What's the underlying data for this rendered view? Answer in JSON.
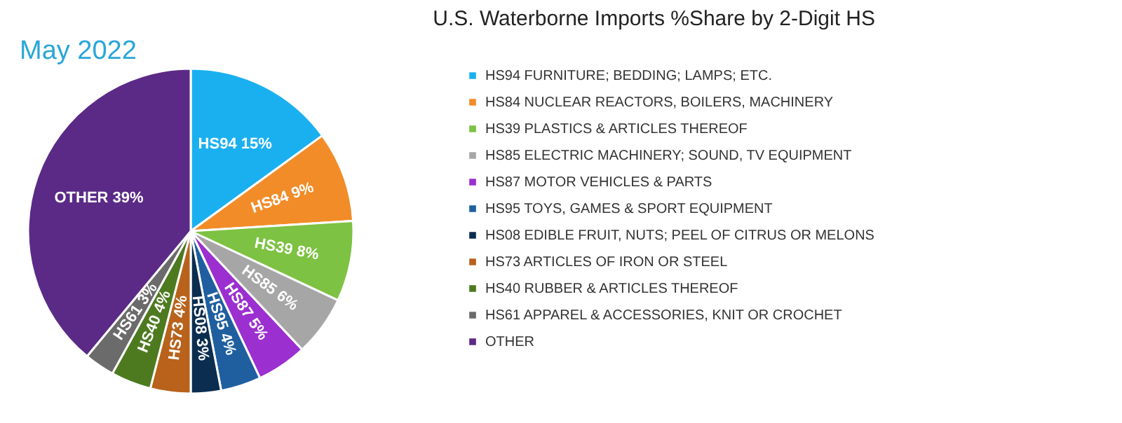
{
  "chart_data": {
    "type": "pie",
    "title": "U.S. Waterborne Imports %Share by 2-Digit HS",
    "subtitle": "May 2022",
    "categories": [
      "HS94 FURNITURE; BEDDING; LAMPS; ETC.",
      "HS84 NUCLEAR REACTORS, BOILERS, MACHINERY",
      "HS39 PLASTICS & ARTICLES THEREOF",
      "HS85 ELECTRIC MACHINERY; SOUND, TV EQUIPMENT",
      "HS87 MOTOR VEHICLES & PARTS",
      "HS95 TOYS, GAMES & SPORT EQUIPMENT",
      "HS08 EDIBLE FRUIT, NUTS; PEEL OF CITRUS OR MELONS",
      "HS73 ARTICLES OF IRON OR STEEL",
      "HS40 RUBBER & ARTICLES THEREOF",
      "HS61 APPAREL & ACCESSORIES, KNIT OR CROCHET",
      "OTHER"
    ],
    "values": [
      15,
      9,
      8,
      6,
      5,
      4,
      3,
      4,
      4,
      3,
      39
    ],
    "value_labels": [
      "HS94 15%",
      "HS84 9%",
      "HS39 8%",
      "HS85 6%",
      "HS87 5%",
      "HS95 4%",
      "HS08 3%",
      "HS73 4%",
      "HS40 4%",
      "HS61 3%",
      "OTHER 39%"
    ],
    "colors": [
      "#1ab0f0",
      "#f28c28",
      "#7dc242",
      "#a6a6a6",
      "#9b2fd0",
      "#1f5fa0",
      "#0b2d50",
      "#b8621b",
      "#4d7a1f",
      "#6b6b6b",
      "#5b2a86"
    ],
    "legend": "right"
  }
}
